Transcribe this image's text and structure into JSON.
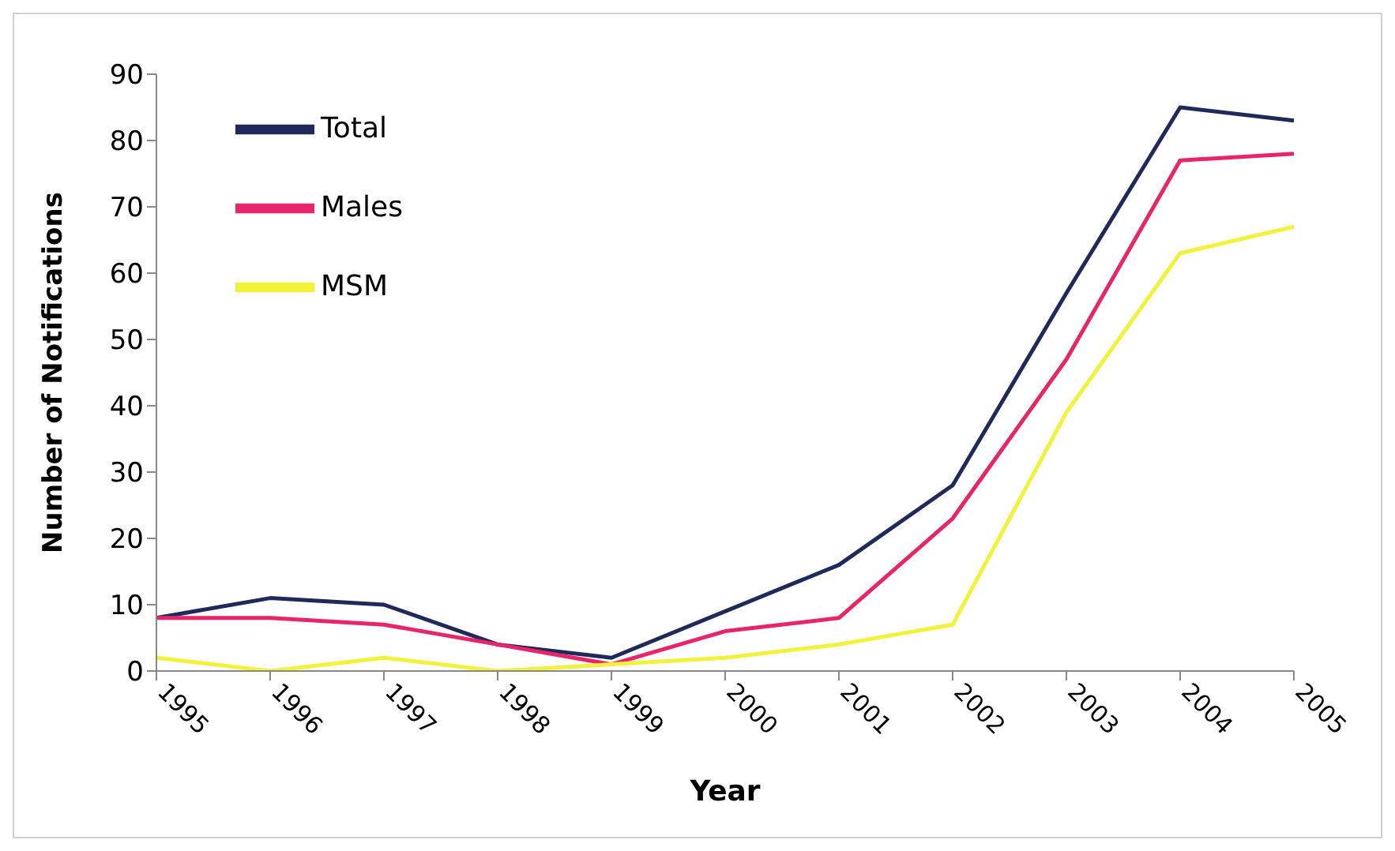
{
  "chart_data": {
    "type": "line",
    "xlabel": "Year",
    "ylabel": "Number of Notifications",
    "categories": [
      "1995",
      "1996",
      "1997",
      "1998",
      "1999",
      "2000",
      "2001",
      "2002",
      "2003",
      "2004",
      "2005"
    ],
    "series": [
      {
        "name": "Total",
        "color": "#1f2a5a",
        "values": [
          8,
          11,
          10,
          4,
          2,
          9,
          16,
          28,
          57,
          85,
          83
        ]
      },
      {
        "name": "Males",
        "color": "#e8246a",
        "values": [
          8,
          8,
          7,
          4,
          1,
          6,
          8,
          23,
          47,
          77,
          78
        ]
      },
      {
        "name": "MSM",
        "color": "#f2f23a",
        "values": [
          2,
          0,
          2,
          0,
          1,
          2,
          4,
          7,
          39,
          63,
          67
        ]
      }
    ],
    "ylim": [
      0,
      90
    ],
    "yticks": [
      0,
      10,
      20,
      30,
      40,
      50,
      60,
      70,
      80,
      90
    ],
    "grid": false,
    "legend": "top left",
    "marker": "none",
    "line_style": "solid"
  }
}
